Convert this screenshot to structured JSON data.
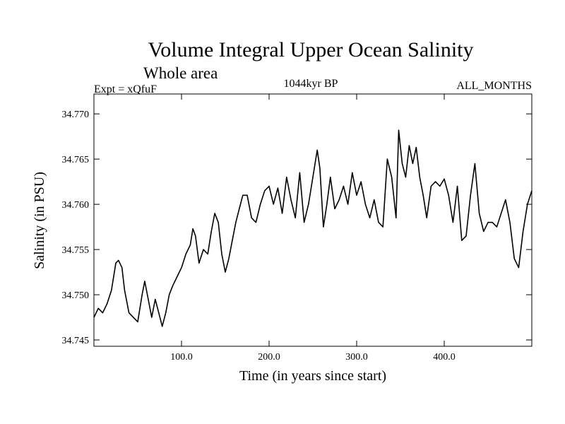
{
  "chart_data": {
    "type": "line",
    "title": "Volume Integral Upper Ocean Salinity",
    "subtitle": "Whole area",
    "experiment_label": "Expt = xQfuF",
    "period_label": "1044kyr BP",
    "months_label": "ALL_MONTHS",
    "xlabel": "Time (in years since start)",
    "ylabel": "Salinity (in PSU)",
    "xlim": [
      0,
      500
    ],
    "ylim": [
      34.7443,
      34.7722
    ],
    "x_ticks": [
      100,
      200,
      300,
      400
    ],
    "x_tick_labels": [
      "100.0",
      "200.0",
      "300.0",
      "400.0"
    ],
    "y_ticks": [
      34.745,
      34.75,
      34.755,
      34.76,
      34.765,
      34.77
    ],
    "y_tick_labels": [
      "34.745",
      "34.750",
      "34.755",
      "34.760",
      "34.765",
      "34.770"
    ],
    "series": [
      {
        "name": "Salinity",
        "x": [
          0,
          5,
          10,
          15,
          20,
          25,
          28,
          32,
          35,
          40,
          45,
          50,
          55,
          58,
          62,
          66,
          70,
          74,
          78,
          82,
          86,
          90,
          95,
          100,
          105,
          110,
          113,
          116,
          120,
          125,
          130,
          134,
          138,
          142,
          146,
          150,
          154,
          158,
          162,
          166,
          170,
          175,
          180,
          185,
          190,
          195,
          200,
          205,
          210,
          215,
          220,
          225,
          230,
          235,
          240,
          245,
          250,
          255,
          258,
          262,
          266,
          270,
          275,
          280,
          285,
          290,
          295,
          300,
          305,
          310,
          315,
          320,
          325,
          330,
          335,
          340,
          345,
          348,
          352,
          356,
          360,
          364,
          368,
          372,
          376,
          380,
          385,
          390,
          395,
          400,
          405,
          410,
          415,
          420,
          425,
          430,
          435,
          440,
          445,
          450,
          455,
          460,
          465,
          470,
          475,
          480,
          485,
          490,
          495,
          500
        ],
        "values": [
          34.7475,
          34.7485,
          34.748,
          34.749,
          34.7505,
          34.7535,
          34.7538,
          34.753,
          34.7505,
          34.748,
          34.7475,
          34.747,
          34.75,
          34.7515,
          34.7495,
          34.7475,
          34.7495,
          34.748,
          34.7465,
          34.748,
          34.75,
          34.751,
          34.752,
          34.753,
          34.7545,
          34.7555,
          34.7573,
          34.7565,
          34.7535,
          34.755,
          34.7545,
          34.757,
          34.759,
          34.758,
          34.7545,
          34.7525,
          34.754,
          34.756,
          34.758,
          34.7595,
          34.761,
          34.761,
          34.7585,
          34.758,
          34.76,
          34.7615,
          34.762,
          34.76,
          34.7618,
          34.759,
          34.763,
          34.7605,
          34.7585,
          34.7635,
          34.758,
          34.76,
          34.763,
          34.766,
          34.764,
          34.7575,
          34.76,
          34.763,
          34.7595,
          34.7605,
          34.762,
          34.76,
          34.7635,
          34.761,
          34.7625,
          34.76,
          34.7585,
          34.7605,
          34.758,
          34.7575,
          34.765,
          34.763,
          34.7585,
          34.7682,
          34.7645,
          34.763,
          34.7665,
          34.7645,
          34.7663,
          34.763,
          34.761,
          34.7585,
          34.762,
          34.7625,
          34.762,
          34.7628,
          34.761,
          34.758,
          34.762,
          34.756,
          34.7565,
          34.761,
          34.7645,
          34.759,
          34.757,
          34.758,
          34.758,
          34.7575,
          34.759,
          34.7605,
          34.758,
          34.754,
          34.753,
          34.757,
          34.76,
          34.7615
        ]
      }
    ]
  }
}
